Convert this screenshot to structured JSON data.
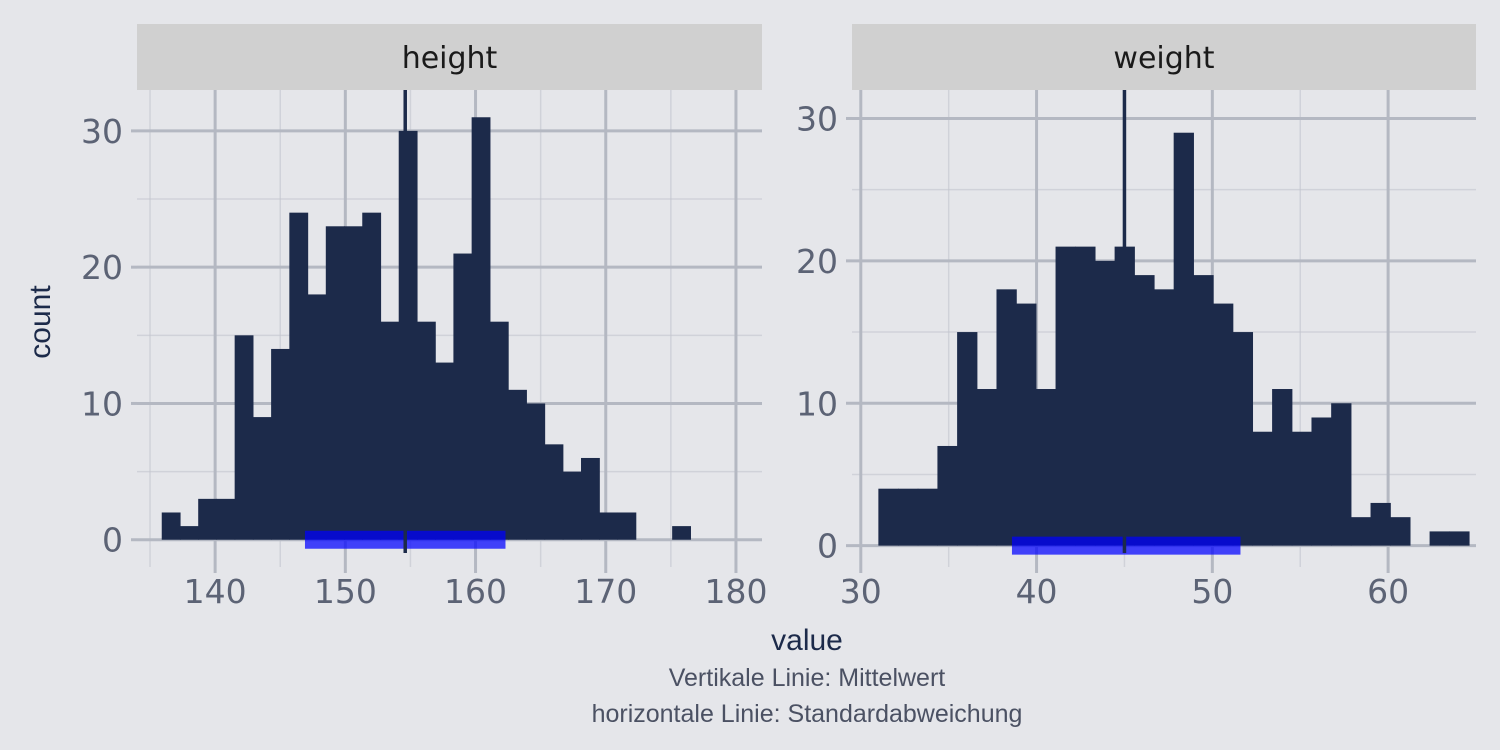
{
  "chart_data": {
    "type": "bar",
    "xlabel": "value",
    "ylabel": "count",
    "caption": [
      "Vertikale Linie: Mittelwert",
      "horizontale Linie: Standardabweichung"
    ],
    "colors": {
      "bars": "#1c2a4a",
      "mean_line": "#1c2a4a",
      "sd_band": "#0000ff",
      "panel_bg": "#e5e6ea",
      "strip_bg": "#d0d0d0",
      "grid": "#c3c6cf"
    },
    "panels": [
      {
        "strip": "height",
        "xlim": [
          134,
          182
        ],
        "ylim": [
          -2,
          33
        ],
        "x_ticks": [
          140,
          150,
          160,
          170,
          180
        ],
        "y_ticks": [
          0,
          10,
          20,
          30
        ],
        "bin_width": 1.4,
        "bin_start": 135.9,
        "counts": [
          2,
          1,
          3,
          3,
          15,
          9,
          14,
          24,
          18,
          23,
          23,
          24,
          16,
          30,
          16,
          13,
          21,
          31,
          16,
          11,
          10,
          7,
          5,
          6,
          2,
          2,
          0,
          0,
          1
        ],
        "mean": 154.6,
        "sd_range": [
          146.9,
          162.3
        ]
      },
      {
        "strip": "weight",
        "xlim": [
          29.5,
          65
        ],
        "ylim": [
          -1.5,
          32
        ],
        "x_ticks": [
          30,
          40,
          50,
          60
        ],
        "y_ticks": [
          0,
          10,
          20,
          30
        ],
        "bin_width": 1.12,
        "bin_start": 31.0,
        "counts": [
          4,
          4,
          4,
          7,
          15,
          11,
          18,
          17,
          11,
          21,
          21,
          20,
          21,
          19,
          18,
          29,
          19,
          17,
          15,
          8,
          11,
          8,
          9,
          10,
          2,
          3,
          2,
          0,
          1,
          1
        ],
        "mean": 45.0,
        "sd_range": [
          38.6,
          51.6
        ]
      }
    ]
  }
}
